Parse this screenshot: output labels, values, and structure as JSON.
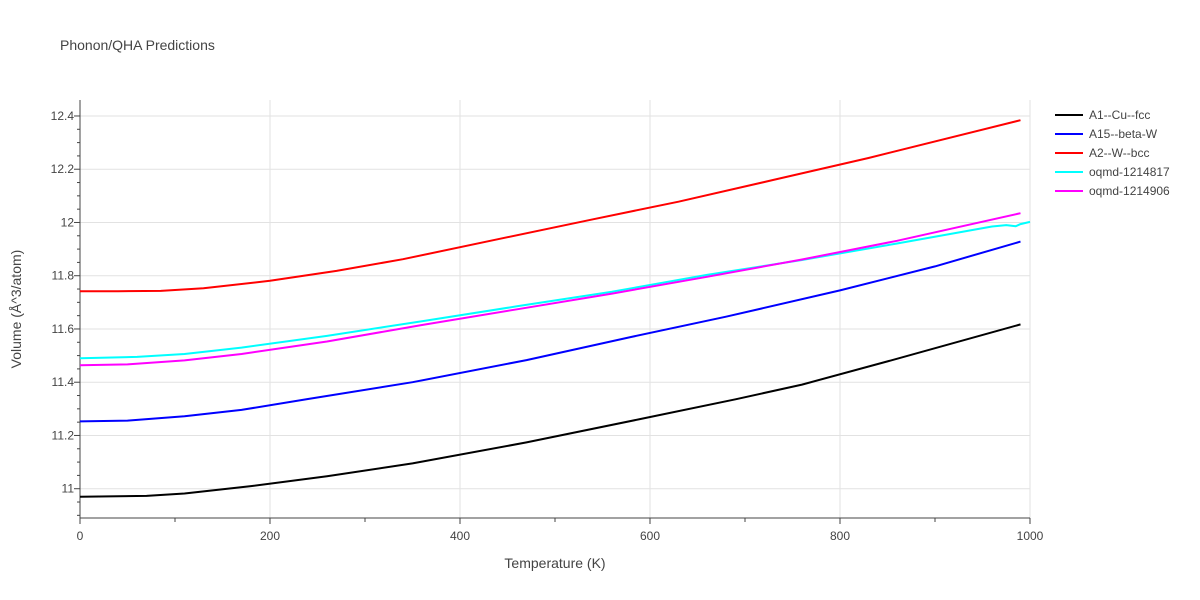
{
  "chart_data": {
    "type": "line",
    "title": "Phonon/QHA Predictions",
    "xlabel": "Temperature (K)",
    "ylabel": "Volume (Å^3/atom)",
    "xlim": [
      0,
      1000
    ],
    "ylim": [
      10.89,
      12.46
    ],
    "x_ticks": [
      0,
      200,
      400,
      600,
      800,
      1000
    ],
    "y_ticks": [
      11,
      11.2,
      11.4,
      11.6,
      11.8,
      12,
      12.2,
      12.4
    ],
    "x_tick_labels": [
      "0",
      "200",
      "400",
      "600",
      "800",
      "1000"
    ],
    "y_tick_labels": [
      "11",
      "11.2",
      "11.4",
      "11.6",
      "11.8",
      "12",
      "12.2",
      "12.4"
    ],
    "grid": true,
    "legend": "right",
    "series": [
      {
        "name": "A1--Cu--fcc",
        "color": "#000000",
        "points": [
          [
            0,
            10.97
          ],
          [
            30,
            10.971
          ],
          [
            70,
            10.973
          ],
          [
            110,
            10.982
          ],
          [
            180,
            11.01
          ],
          [
            260,
            11.047
          ],
          [
            350,
            11.095
          ],
          [
            470,
            11.174
          ],
          [
            590,
            11.262
          ],
          [
            690,
            11.336
          ],
          [
            760,
            11.391
          ],
          [
            850,
            11.478
          ],
          [
            990,
            11.617
          ]
        ]
      },
      {
        "name": "A15--beta-W",
        "color": "#0000ff",
        "points": [
          [
            0,
            11.253
          ],
          [
            50,
            11.256
          ],
          [
            110,
            11.272
          ],
          [
            170,
            11.296
          ],
          [
            240,
            11.337
          ],
          [
            350,
            11.4
          ],
          [
            470,
            11.483
          ],
          [
            580,
            11.57
          ],
          [
            680,
            11.646
          ],
          [
            800,
            11.745
          ],
          [
            900,
            11.835
          ],
          [
            990,
            11.928
          ]
        ]
      },
      {
        "name": "A2--W--bcc",
        "color": "#ff0000",
        "points": [
          [
            0,
            11.742
          ],
          [
            40,
            11.742
          ],
          [
            85,
            11.743
          ],
          [
            130,
            11.753
          ],
          [
            200,
            11.781
          ],
          [
            270,
            11.818
          ],
          [
            340,
            11.862
          ],
          [
            440,
            11.937
          ],
          [
            540,
            12.012
          ],
          [
            630,
            12.078
          ],
          [
            730,
            12.16
          ],
          [
            830,
            12.242
          ],
          [
            990,
            12.384
          ]
        ]
      },
      {
        "name": "oqmd-1214817",
        "color": "#00ffff",
        "points": [
          [
            0,
            11.49
          ],
          [
            60,
            11.495
          ],
          [
            110,
            11.506
          ],
          [
            170,
            11.53
          ],
          [
            260,
            11.574
          ],
          [
            360,
            11.629
          ],
          [
            460,
            11.685
          ],
          [
            560,
            11.74
          ],
          [
            660,
            11.803
          ],
          [
            760,
            11.859
          ],
          [
            860,
            11.921
          ],
          [
            960,
            11.985
          ],
          [
            975,
            11.99
          ],
          [
            985,
            11.986
          ],
          [
            990,
            11.994
          ],
          [
            1000,
            12.002
          ]
        ]
      },
      {
        "name": "oqmd-1214906",
        "color": "#ff00ff",
        "points": [
          [
            0,
            11.464
          ],
          [
            50,
            11.467
          ],
          [
            110,
            11.482
          ],
          [
            170,
            11.506
          ],
          [
            260,
            11.553
          ],
          [
            360,
            11.615
          ],
          [
            460,
            11.674
          ],
          [
            560,
            11.733
          ],
          [
            660,
            11.796
          ],
          [
            760,
            11.861
          ],
          [
            860,
            11.931
          ],
          [
            990,
            12.035
          ]
        ]
      }
    ]
  }
}
